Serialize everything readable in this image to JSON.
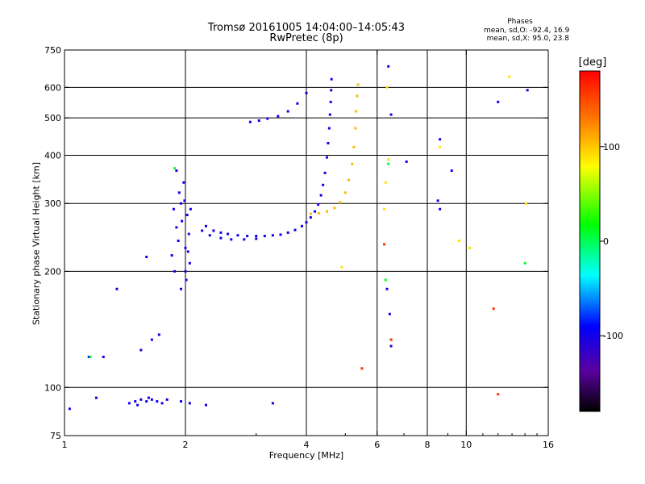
{
  "header": {
    "title_line1": "Tromsø 20161005 14:04:00–14:05:43",
    "title_line2": "RwPretec (8p)",
    "phases_title": "Phases",
    "phases_O": "mean, sd,O: -92.4, 16.9",
    "phases_X": "mean, sd,X:  95.0, 23.8"
  },
  "colorbar": {
    "title": "[deg]",
    "min": -180,
    "max": 180,
    "ticks": [
      {
        "value": 100,
        "label": "100"
      },
      {
        "value": 0,
        "label": "0"
      },
      {
        "value": -100,
        "label": "-100"
      }
    ]
  },
  "chart_data": {
    "type": "scatter",
    "xlabel": "Frequency [MHz]",
    "ylabel": "Stationary phase Virtual Height [km]",
    "xscale": "log",
    "yscale": "log",
    "xlim": [
      1,
      16
    ],
    "ylim": [
      75,
      750
    ],
    "grid": true,
    "x_ticks": [
      {
        "value": 1,
        "label": "1"
      },
      {
        "value": 2,
        "label": "2"
      },
      {
        "value": 4,
        "label": "4"
      },
      {
        "value": 6,
        "label": "6"
      },
      {
        "value": 8,
        "label": "8"
      },
      {
        "value": 10,
        "label": "10"
      },
      {
        "value": 16,
        "label": "16"
      }
    ],
    "y_ticks": [
      {
        "value": 75,
        "label": "75"
      },
      {
        "value": 100,
        "label": "100"
      },
      {
        "value": 200,
        "label": "200"
      },
      {
        "value": 300,
        "label": "300"
      },
      {
        "value": 400,
        "label": "400"
      },
      {
        "value": 500,
        "label": "500"
      },
      {
        "value": 600,
        "label": "600"
      },
      {
        "value": 750,
        "label": "750"
      }
    ],
    "grid_x": [
      2,
      4,
      6,
      8,
      10
    ],
    "grid_y": [
      100,
      200,
      300,
      400,
      500,
      600
    ],
    "series": [
      {
        "trace": "o-mode-f-layer-trace",
        "phase": -100,
        "points": [
          [
            2.25,
            262
          ],
          [
            2.35,
            255
          ],
          [
            2.45,
            252
          ],
          [
            2.55,
            250
          ],
          [
            2.7,
            248
          ],
          [
            2.85,
            247
          ],
          [
            3.0,
            247
          ],
          [
            3.15,
            247
          ],
          [
            3.3,
            248
          ],
          [
            3.45,
            249
          ],
          [
            3.6,
            252
          ],
          [
            3.75,
            256
          ],
          [
            3.9,
            262
          ],
          [
            4.0,
            268
          ],
          [
            4.1,
            276
          ],
          [
            4.2,
            286
          ],
          [
            4.28,
            298
          ],
          [
            4.35,
            315
          ],
          [
            4.4,
            335
          ],
          [
            4.45,
            360
          ],
          [
            4.5,
            395
          ],
          [
            4.53,
            430
          ],
          [
            4.56,
            470
          ],
          [
            4.58,
            510
          ],
          [
            4.6,
            550
          ],
          [
            4.61,
            590
          ],
          [
            4.62,
            630
          ]
        ]
      },
      {
        "trace": "o-mode-upper-trace",
        "phase": -100,
        "points": [
          [
            2.9,
            488
          ],
          [
            3.05,
            492
          ],
          [
            3.2,
            498
          ],
          [
            3.4,
            505
          ],
          [
            3.6,
            520
          ],
          [
            3.8,
            545
          ],
          [
            4.0,
            580
          ]
        ]
      },
      {
        "trace": "o-mode-lower-trace",
        "phase": -100,
        "points": [
          [
            2.2,
            255
          ],
          [
            2.3,
            248
          ],
          [
            2.45,
            244
          ],
          [
            2.6,
            242
          ],
          [
            2.8,
            242
          ],
          [
            3.0,
            243
          ]
        ]
      },
      {
        "trace": "x-mode-f-layer-trace",
        "phase": 105,
        "points": [
          [
            4.1,
            282
          ],
          [
            4.3,
            283
          ],
          [
            4.5,
            286
          ],
          [
            4.7,
            292
          ],
          [
            4.85,
            302
          ],
          [
            5.0,
            320
          ],
          [
            5.1,
            345
          ],
          [
            5.2,
            380
          ],
          [
            5.25,
            420
          ],
          [
            5.3,
            470
          ],
          [
            5.32,
            520
          ],
          [
            5.35,
            570
          ],
          [
            5.38,
            610
          ]
        ]
      },
      {
        "trace": "cusp-cluster-2mhz",
        "phase": -100,
        "points": [
          [
            1.85,
            220
          ],
          [
            1.9,
            260
          ],
          [
            1.95,
            300
          ],
          [
            1.98,
            340
          ],
          [
            2.0,
            230
          ],
          [
            2.02,
            280
          ],
          [
            2.05,
            210
          ],
          [
            1.88,
            200
          ],
          [
            1.92,
            240
          ],
          [
            1.96,
            270
          ],
          [
            2.01,
            190
          ],
          [
            2.04,
            250
          ],
          [
            1.9,
            365
          ],
          [
            1.93,
            320
          ],
          [
            2.06,
            290
          ],
          [
            1.87,
            290
          ],
          [
            1.95,
            180
          ],
          [
            2.0,
            200
          ],
          [
            1.99,
            305
          ],
          [
            2.03,
            225
          ]
        ]
      },
      {
        "trace": "e-layer-trace",
        "phase": -100,
        "points": [
          [
            1.45,
            91
          ],
          [
            1.5,
            92
          ],
          [
            1.55,
            93
          ],
          [
            1.6,
            92
          ],
          [
            1.65,
            93
          ],
          [
            1.7,
            92
          ],
          [
            1.75,
            91
          ],
          [
            1.8,
            93
          ],
          [
            1.62,
            94
          ],
          [
            1.52,
            90
          ],
          [
            1.95,
            92
          ],
          [
            2.05,
            91
          ],
          [
            2.25,
            90
          ],
          [
            1.03,
            88
          ],
          [
            1.2,
            94
          ]
        ]
      },
      {
        "trace": "scattered-points",
        "phase": -100,
        "points": [
          [
            1.35,
            180
          ],
          [
            1.6,
            218
          ],
          [
            1.65,
            133
          ],
          [
            1.55,
            125
          ],
          [
            1.72,
            137
          ],
          [
            1.15,
            120
          ],
          [
            1.25,
            120
          ],
          [
            3.3,
            91
          ],
          [
            6.4,
            680
          ],
          [
            6.5,
            510
          ],
          [
            7.1,
            385
          ],
          [
            8.6,
            440
          ],
          [
            8.6,
            290
          ],
          [
            9.2,
            365
          ],
          [
            12.0,
            550
          ],
          [
            14.2,
            590
          ],
          [
            6.5,
            128
          ],
          [
            6.35,
            180
          ],
          [
            6.45,
            155
          ],
          [
            8.5,
            305
          ]
        ]
      },
      {
        "trace": "scattered-x-points",
        "phase": 90,
        "points": [
          [
            6.3,
            340
          ],
          [
            6.4,
            390
          ],
          [
            6.35,
            600
          ],
          [
            8.6,
            420
          ],
          [
            9.6,
            240
          ],
          [
            10.2,
            230
          ],
          [
            12.8,
            640
          ],
          [
            4.9,
            205
          ],
          [
            14.1,
            300
          ],
          [
            6.25,
            290
          ]
        ]
      },
      {
        "trace": "scattered-other-points",
        "phase": 10,
        "points": [
          [
            1.16,
            120
          ],
          [
            1.88,
            370
          ],
          [
            6.3,
            190
          ],
          [
            14.0,
            210
          ],
          [
            6.4,
            380
          ]
        ]
      },
      {
        "trace": "scattered-red-points",
        "phase": 160,
        "points": [
          [
            6.25,
            235
          ],
          [
            12.0,
            96
          ],
          [
            11.7,
            160
          ],
          [
            5.5,
            112
          ],
          [
            6.5,
            133
          ]
        ]
      }
    ]
  }
}
